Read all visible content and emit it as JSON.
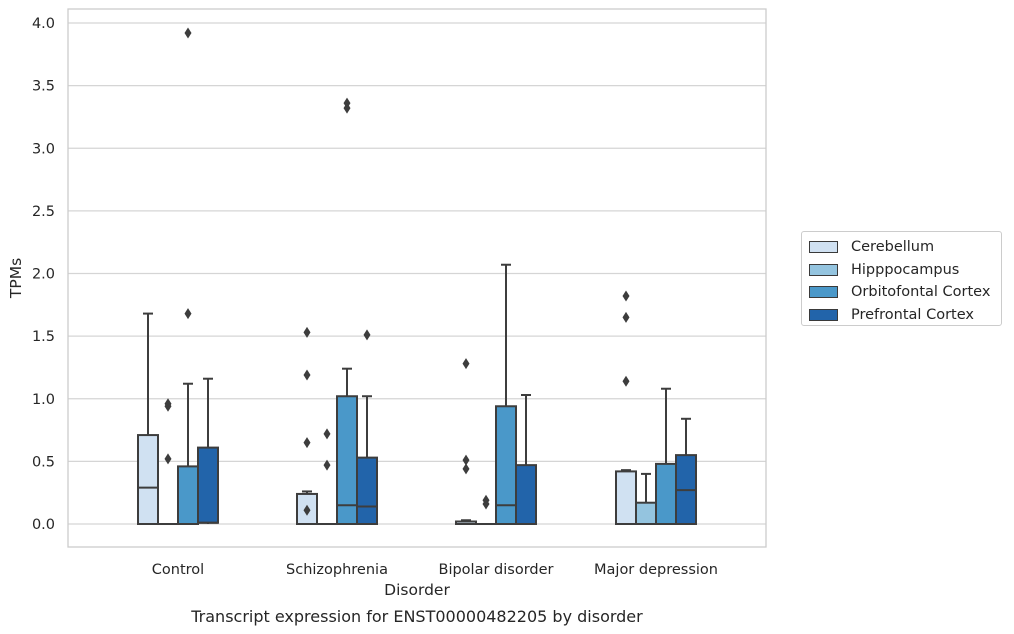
{
  "caption": "Transcript expression for ENST00000482205 by disorder",
  "colors": {
    "Cerebellum": "#d0e1f2",
    "Hipppocampus": "#94c4df",
    "Orbitofontal Cortex": "#4a98c9",
    "Prefrontal Cortex": "#2264aa"
  },
  "chart_data": {
    "type": "box",
    "title": "",
    "xlabel": "Disorder",
    "ylabel": "TPMs",
    "ylim": [
      -0.19,
      4.12
    ],
    "yticks": [
      "0.0",
      "0.5",
      "1.0",
      "1.5",
      "2.0",
      "2.5",
      "3.0",
      "3.5",
      "4.0"
    ],
    "grid": "horizontal",
    "legend_position": "right",
    "categories": [
      "Control",
      "Schizophrenia",
      "Bipolar disorder",
      "Major depression"
    ],
    "series": [
      {
        "name": "Cerebellum",
        "boxes": [
          {
            "q1": 0.0,
            "median": 0.29,
            "q3": 0.71,
            "whisker_low": 0.0,
            "whisker_high": 1.68,
            "outliers": []
          },
          {
            "q1": 0.0,
            "median": 0.0,
            "q3": 0.24,
            "whisker_low": 0.0,
            "whisker_high": 0.26,
            "outliers": [
              1.53,
              1.19,
              0.65,
              0.11
            ]
          },
          {
            "q1": 0.0,
            "median": 0.0,
            "q3": 0.02,
            "whisker_low": 0.0,
            "whisker_high": 0.03,
            "outliers": [
              1.28,
              0.51,
              0.44
            ]
          },
          {
            "q1": 0.0,
            "median": 0.0,
            "q3": 0.42,
            "whisker_low": 0.0,
            "whisker_high": 0.43,
            "outliers": [
              1.82,
              1.65,
              1.14
            ]
          }
        ]
      },
      {
        "name": "Hipppocampus",
        "boxes": [
          {
            "q1": 0.0,
            "median": 0.0,
            "q3": 0.0,
            "whisker_low": 0.0,
            "whisker_high": 0.0,
            "outliers": [
              0.96,
              0.94,
              0.52
            ]
          },
          {
            "q1": 0.0,
            "median": 0.0,
            "q3": 0.0,
            "whisker_low": 0.0,
            "whisker_high": 0.0,
            "outliers": [
              0.72,
              0.47
            ]
          },
          {
            "q1": 0.0,
            "median": 0.0,
            "q3": 0.0,
            "whisker_low": 0.0,
            "whisker_high": 0.0,
            "outliers": [
              0.19,
              0.16
            ]
          },
          {
            "q1": 0.0,
            "median": 0.0,
            "q3": 0.17,
            "whisker_low": 0.0,
            "whisker_high": 0.4,
            "outliers": []
          }
        ]
      },
      {
        "name": "Orbitofontal Cortex",
        "boxes": [
          {
            "q1": 0.0,
            "median": 0.0,
            "q3": 0.46,
            "whisker_low": 0.0,
            "whisker_high": 1.12,
            "outliers": [
              3.92,
              1.68
            ]
          },
          {
            "q1": 0.0,
            "median": 0.15,
            "q3": 1.02,
            "whisker_low": 0.0,
            "whisker_high": 1.24,
            "outliers": [
              3.36,
              3.32
            ]
          },
          {
            "q1": 0.0,
            "median": 0.15,
            "q3": 0.94,
            "whisker_low": 0.0,
            "whisker_high": 2.07,
            "outliers": []
          },
          {
            "q1": 0.0,
            "median": 0.0,
            "q3": 0.48,
            "whisker_low": 0.0,
            "whisker_high": 1.08,
            "outliers": []
          }
        ]
      },
      {
        "name": "Prefrontal Cortex",
        "boxes": [
          {
            "q1": 0.01,
            "median": 0.01,
            "q3": 0.61,
            "whisker_low": 0.0,
            "whisker_high": 1.16,
            "outliers": []
          },
          {
            "q1": 0.0,
            "median": 0.14,
            "q3": 0.53,
            "whisker_low": 0.0,
            "whisker_high": 1.02,
            "outliers": [
              1.51
            ]
          },
          {
            "q1": 0.0,
            "median": 0.0,
            "q3": 0.47,
            "whisker_low": 0.0,
            "whisker_high": 1.03,
            "outliers": []
          },
          {
            "q1": 0.0,
            "median": 0.27,
            "q3": 0.55,
            "whisker_low": 0.0,
            "whisker_high": 0.84,
            "outliers": []
          }
        ]
      }
    ]
  }
}
